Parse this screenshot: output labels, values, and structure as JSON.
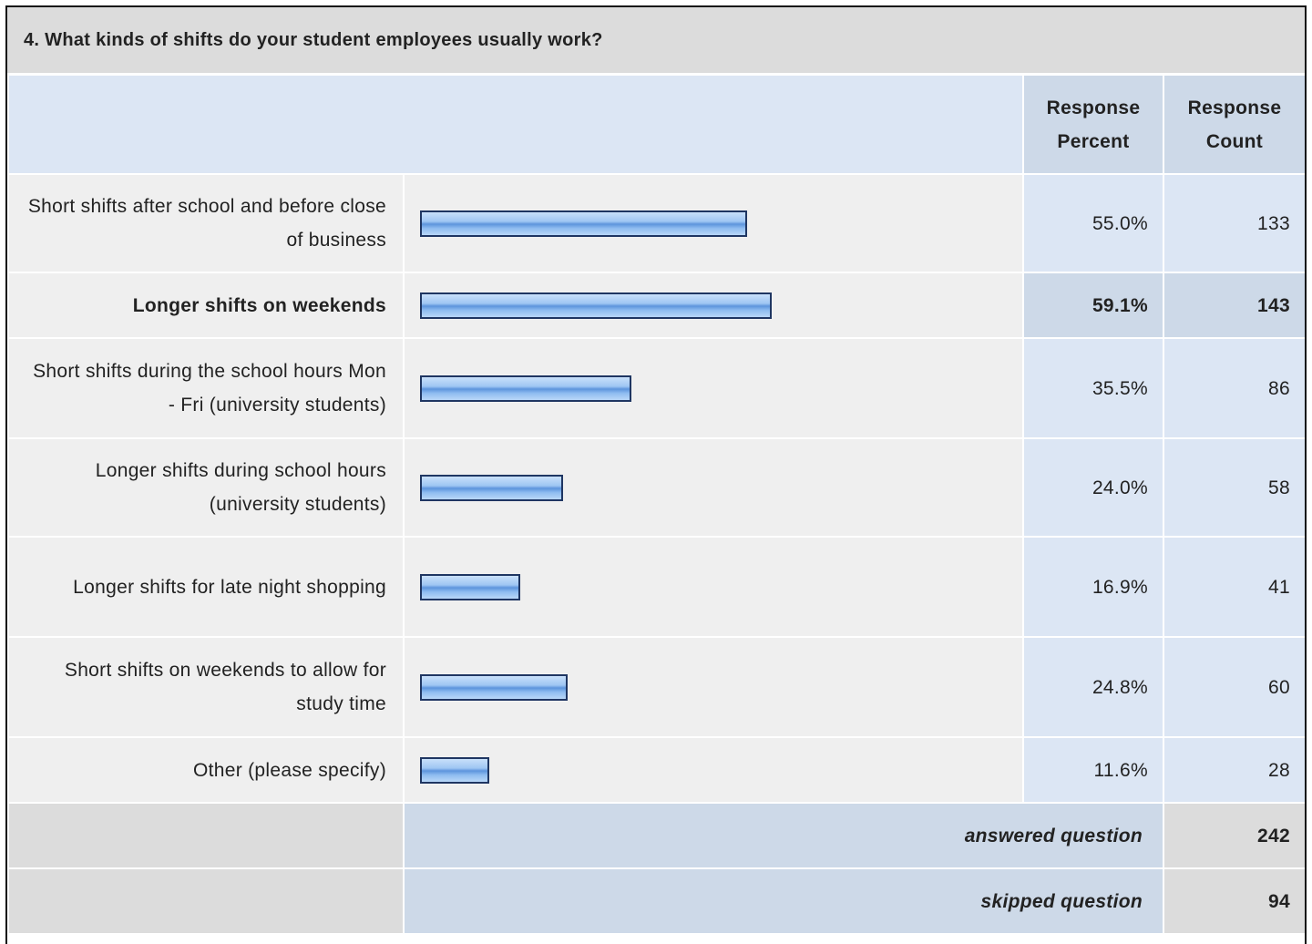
{
  "title": "4. What kinds of shifts do your student employees usually work?",
  "columns": {
    "percent": "Response Percent",
    "count": "Response Count"
  },
  "rows": [
    {
      "label": "Short shifts after school and before close of business",
      "percent": 55.0,
      "percent_label": "55.0%",
      "count": 133
    },
    {
      "label": "Longer shifts on weekends",
      "percent": 59.1,
      "percent_label": "59.1%",
      "count": 143
    },
    {
      "label": "Short shifts during the school hours Mon - Fri (university students)",
      "percent": 35.5,
      "percent_label": "35.5%",
      "count": 86
    },
    {
      "label": "Longer shifts during school hours (university students)",
      "percent": 24.0,
      "percent_label": "24.0%",
      "count": 58
    },
    {
      "label": "Longer shifts for late night shopping",
      "percent": 16.9,
      "percent_label": "16.9%",
      "count": 41
    },
    {
      "label": "Short shifts on weekends to allow for study time",
      "percent": 24.8,
      "percent_label": "24.8%",
      "count": 60
    },
    {
      "label": "Other (please specify)",
      "percent": 11.6,
      "percent_label": "11.6%",
      "count": 28
    }
  ],
  "summary": {
    "answered_label": "answered question",
    "answered": 242,
    "skipped_label": "skipped question",
    "skipped": 94
  }
}
